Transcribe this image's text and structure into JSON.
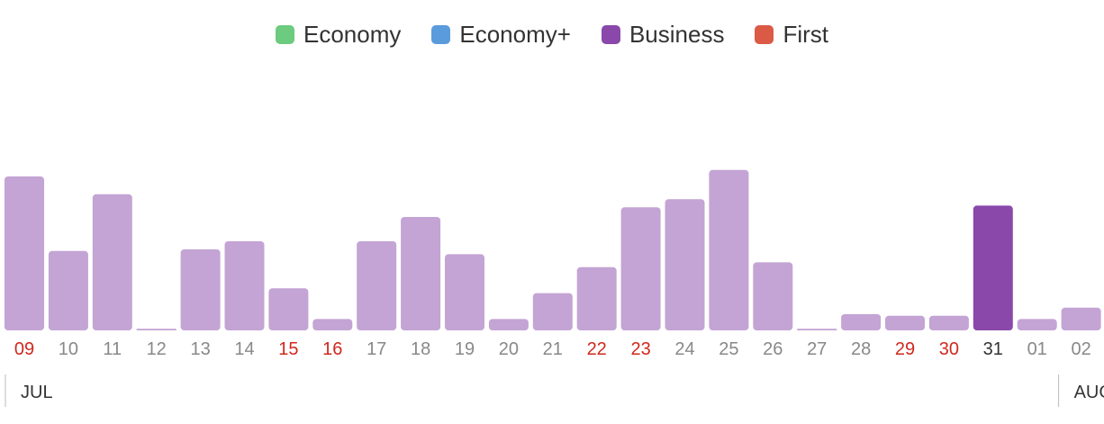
{
  "legend": [
    {
      "label": "Economy",
      "color": "#6CCB7E"
    },
    {
      "label": "Economy+",
      "color": "#5A9BDC"
    },
    {
      "label": "Business",
      "color": "#8A48AA"
    },
    {
      "label": "First",
      "color": "#DB5A46"
    }
  ],
  "colors": {
    "bar": "#C3A4D4",
    "bar_selected": "#8A48AA",
    "tick_default": "#888888",
    "tick_weekend": "#D0281E",
    "tick_selected": "#333333",
    "month_divider": "#BBBBBB"
  },
  "chart_data": {
    "type": "bar",
    "categories": [
      "09",
      "10",
      "11",
      "12",
      "13",
      "14",
      "15",
      "16",
      "17",
      "18",
      "19",
      "20",
      "21",
      "22",
      "23",
      "24",
      "25",
      "26",
      "27",
      "28",
      "29",
      "30",
      "31",
      "01",
      "02"
    ],
    "values": [
      95,
      49,
      84,
      1,
      50,
      55,
      26,
      7,
      55,
      70,
      47,
      7,
      23,
      39,
      76,
      81,
      99,
      42,
      1,
      10,
      9,
      9,
      77,
      7,
      14
    ],
    "weekend_ticks": [
      "09",
      "15",
      "16",
      "22",
      "23",
      "29",
      "30"
    ],
    "selected": "31",
    "ylim": [
      0,
      100
    ],
    "months": [
      {
        "label": "JUL",
        "start_index": 0
      },
      {
        "label": "AUG",
        "start_index": 23
      }
    ]
  }
}
